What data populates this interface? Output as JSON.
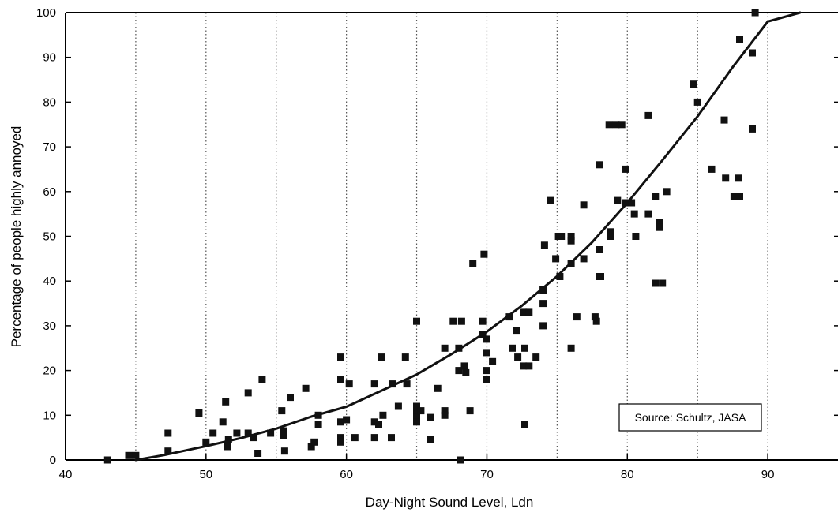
{
  "chart_data": {
    "type": "scatter",
    "title": "",
    "xlabel": "Day-Night Sound Level, Ldn",
    "ylabel": "Percentage of people highly annoyed",
    "xlim": [
      40,
      95
    ],
    "ylim": [
      0,
      100
    ],
    "x_ticks": [
      40,
      50,
      60,
      70,
      80,
      90
    ],
    "y_ticks": [
      0,
      10,
      20,
      30,
      40,
      50,
      60,
      70,
      80,
      90,
      100
    ],
    "vertical_gridlines": [
      45,
      50,
      55,
      60,
      65,
      70,
      75,
      80,
      85,
      90
    ],
    "grid_style": "dotted vertical",
    "annotation": "Source: Schultz, JASA",
    "colors": {
      "points": "#111111",
      "curve": "#111111",
      "grid": "#555555",
      "axes": "#000000"
    },
    "series": [
      {
        "type": "scatter",
        "points": [
          [
            43,
            0
          ],
          [
            44.5,
            1
          ],
          [
            45,
            1
          ],
          [
            47.3,
            6
          ],
          [
            47.3,
            2
          ],
          [
            49.5,
            10.5
          ],
          [
            50,
            4
          ],
          [
            50.5,
            6
          ],
          [
            51.2,
            8.5
          ],
          [
            51.4,
            13
          ],
          [
            51.5,
            3
          ],
          [
            51.6,
            4.5
          ],
          [
            52.2,
            6
          ],
          [
            53,
            15
          ],
          [
            53,
            6
          ],
          [
            53.4,
            5
          ],
          [
            53.7,
            1.5
          ],
          [
            54,
            18
          ],
          [
            54.6,
            6
          ],
          [
            55.4,
            11
          ],
          [
            55.5,
            6.5
          ],
          [
            55.5,
            5.5
          ],
          [
            55.6,
            2
          ],
          [
            56,
            14
          ],
          [
            57.1,
            16
          ],
          [
            57.5,
            3
          ],
          [
            57.7,
            4
          ],
          [
            58,
            10
          ],
          [
            58,
            8
          ],
          [
            59.6,
            23
          ],
          [
            59.6,
            18
          ],
          [
            59.6,
            8.5
          ],
          [
            59.6,
            5
          ],
          [
            59.6,
            4
          ],
          [
            60,
            9
          ],
          [
            60.2,
            17
          ],
          [
            60.6,
            5
          ],
          [
            62,
            17
          ],
          [
            62,
            8.5
          ],
          [
            62,
            5
          ],
          [
            62.3,
            8
          ],
          [
            62.5,
            23
          ],
          [
            62.6,
            10
          ],
          [
            63.2,
            5
          ],
          [
            63.3,
            17
          ],
          [
            63.7,
            12
          ],
          [
            64.2,
            23
          ],
          [
            64.3,
            17
          ],
          [
            65,
            31
          ],
          [
            65,
            12
          ],
          [
            65,
            10.5
          ],
          [
            65,
            9.5
          ],
          [
            65,
            8.5
          ],
          [
            65.3,
            11
          ],
          [
            66,
            9.5
          ],
          [
            66,
            4.5
          ],
          [
            66.5,
            16
          ],
          [
            67,
            25
          ],
          [
            67,
            11
          ],
          [
            67,
            10
          ],
          [
            67.6,
            31
          ],
          [
            68,
            25
          ],
          [
            68,
            20
          ],
          [
            68.1,
            0
          ],
          [
            68.2,
            31
          ],
          [
            68.4,
            21
          ],
          [
            68.5,
            19.5
          ],
          [
            68.8,
            11
          ],
          [
            69,
            44
          ],
          [
            69.7,
            31
          ],
          [
            69.7,
            28
          ],
          [
            69.8,
            46
          ],
          [
            70,
            27
          ],
          [
            70,
            24
          ],
          [
            70,
            20
          ],
          [
            70,
            18
          ],
          [
            70.4,
            22
          ],
          [
            71.6,
            32
          ],
          [
            71.8,
            25
          ],
          [
            72.1,
            29
          ],
          [
            72.2,
            23
          ],
          [
            72.6,
            33
          ],
          [
            72.6,
            21
          ],
          [
            72.7,
            25
          ],
          [
            72.7,
            8
          ],
          [
            73,
            33
          ],
          [
            73,
            21
          ],
          [
            73.5,
            23
          ],
          [
            74,
            30
          ],
          [
            74,
            35
          ],
          [
            74,
            38
          ],
          [
            74.1,
            48
          ],
          [
            74.5,
            58
          ],
          [
            74.9,
            45
          ],
          [
            75.1,
            50
          ],
          [
            75.2,
            41
          ],
          [
            75.3,
            50
          ],
          [
            76,
            49
          ],
          [
            76,
            50
          ],
          [
            76,
            44
          ],
          [
            76,
            25
          ],
          [
            76.4,
            32
          ],
          [
            76.9,
            45
          ],
          [
            76.9,
            57
          ],
          [
            77.7,
            32
          ],
          [
            77.8,
            31
          ],
          [
            78,
            41
          ],
          [
            78,
            66
          ],
          [
            78,
            47
          ],
          [
            78.1,
            41
          ],
          [
            78.7,
            75
          ],
          [
            78.8,
            51
          ],
          [
            78.8,
            50
          ],
          [
            79.2,
            75
          ],
          [
            79.3,
            58
          ],
          [
            79.6,
            75
          ],
          [
            79.9,
            65
          ],
          [
            79.9,
            57.5
          ],
          [
            80.3,
            57.5
          ],
          [
            80.5,
            55
          ],
          [
            80.6,
            50
          ],
          [
            81.5,
            77
          ],
          [
            81.5,
            55
          ],
          [
            82,
            59
          ],
          [
            82,
            39.5
          ],
          [
            82.3,
            53
          ],
          [
            82.3,
            52
          ],
          [
            82.5,
            39.5
          ],
          [
            82.8,
            60
          ],
          [
            84.7,
            84
          ],
          [
            85,
            80
          ],
          [
            86,
            65
          ],
          [
            86.9,
            76
          ],
          [
            87,
            63
          ],
          [
            87.6,
            59
          ],
          [
            87.9,
            63
          ],
          [
            88,
            59
          ],
          [
            88,
            94
          ],
          [
            88.9,
            91
          ],
          [
            88.9,
            74
          ],
          [
            89.1,
            100
          ]
        ]
      },
      {
        "type": "line",
        "points": [
          [
            45,
            0
          ],
          [
            47,
            1.1
          ],
          [
            50,
            3.1
          ],
          [
            52.5,
            4.9
          ],
          [
            55,
            7
          ],
          [
            57.5,
            9.7
          ],
          [
            60,
            11.9
          ],
          [
            62.5,
            15.5
          ],
          [
            65,
            19.1
          ],
          [
            67.5,
            23.7
          ],
          [
            70,
            28.7
          ],
          [
            72.5,
            34.5
          ],
          [
            75,
            41.1
          ],
          [
            77.5,
            48.7
          ],
          [
            80,
            57.5
          ],
          [
            82.5,
            67
          ],
          [
            85,
            76.8
          ],
          [
            87.5,
            87.8
          ],
          [
            90,
            98
          ],
          [
            92.3,
            100
          ]
        ]
      }
    ]
  }
}
